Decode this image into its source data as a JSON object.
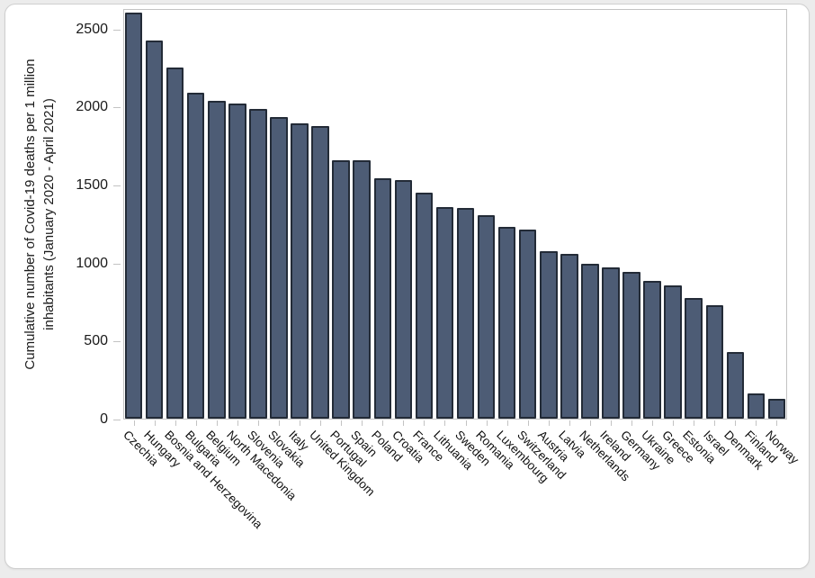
{
  "chart_data": {
    "type": "bar",
    "title": "",
    "ylabel_line1": "Cumulative number of Covid-19 deaths per 1 million",
    "ylabel_line2": "inhabitants (January 2020 - April 2021)",
    "xlabel": "",
    "categories": [
      "Czechia",
      "Hungary",
      "Bosnia and Herzegovina",
      "Bulgaria",
      "Belgium",
      "North Macedonia",
      "Slovenia",
      "Slovakia",
      "Italy",
      "United Kingdom",
      "Portugal",
      "Spain",
      "Poland",
      "Croatia",
      "France",
      "Lithuania",
      "Sweden",
      "Romania",
      "Luxembourg",
      "Switzerland",
      "Austria",
      "Latvia",
      "Netherlands",
      "Ireland",
      "Germany",
      "Ukraine",
      "Greece",
      "Estonia",
      "Israel",
      "Denmark",
      "Finland",
      "Norway"
    ],
    "values": [
      2600,
      2425,
      2250,
      2090,
      2035,
      2020,
      1985,
      1935,
      1890,
      1875,
      1655,
      1655,
      1540,
      1530,
      1450,
      1355,
      1350,
      1305,
      1230,
      1210,
      1075,
      1055,
      990,
      970,
      940,
      880,
      855,
      775,
      725,
      425,
      160,
      125
    ],
    "yticks": [
      0,
      500,
      1000,
      1500,
      2000,
      2500
    ],
    "ylim": [
      0,
      2630
    ],
    "grid": "off",
    "legend": "none",
    "bar_fill": "#4d5c75",
    "bar_stroke": "#232b37",
    "axis_color": "#c3c3c3",
    "text_color": "#1a1a1a"
  }
}
